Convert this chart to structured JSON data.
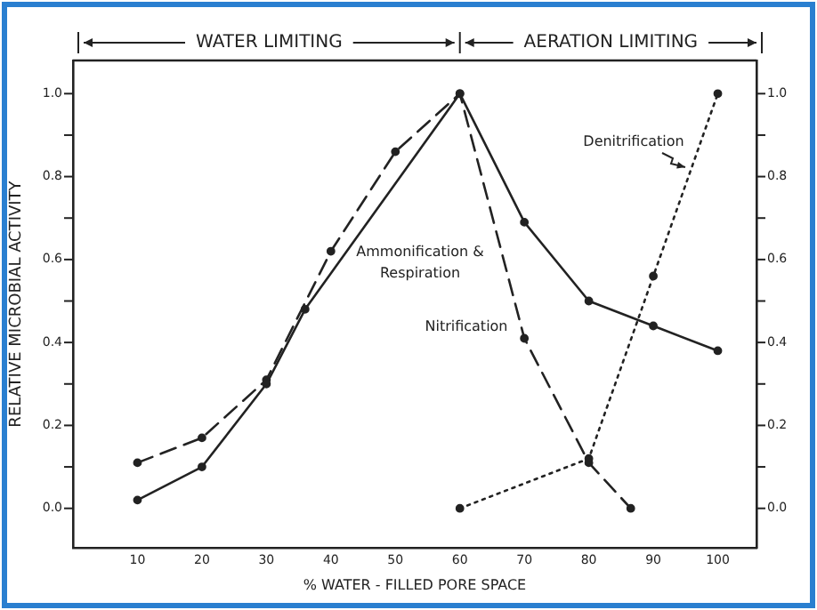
{
  "chart_data": {
    "type": "line",
    "xlabel": "% WATER - FILLED PORE SPACE",
    "ylabel": "RELATIVE MICROBIAL ACTIVITY",
    "annotations": [
      "WATER LIMITING",
      "AERATION LIMITING"
    ],
    "xlim": [
      0,
      106
    ],
    "xticks": [
      10,
      20,
      30,
      40,
      50,
      60,
      70,
      80,
      90,
      100
    ],
    "ylim": [
      -0.095,
      1.08
    ],
    "yticks": [
      {
        "value": 0,
        "label": "0.0"
      },
      {
        "value": 0.1,
        "label": null
      },
      {
        "value": 0.2,
        "label": "0.2"
      },
      {
        "value": 0.3,
        "label": null
      },
      {
        "value": 0.4,
        "label": "0.4"
      },
      {
        "value": 0.5,
        "label": null
      },
      {
        "value": 0.6,
        "label": "0.6"
      },
      {
        "value": 0.7,
        "label": null
      },
      {
        "value": 0.8,
        "label": "0.8"
      },
      {
        "value": 0.9,
        "label": null
      },
      {
        "value": 1.0,
        "label": "1.0"
      }
    ],
    "y2lim": [
      -0.095,
      1.08
    ],
    "y2ticks": [
      {
        "value": 0,
        "label": "0.0"
      },
      {
        "value": 0.1,
        "label": null
      },
      {
        "value": 0.2,
        "label": "0.2"
      },
      {
        "value": 0.3,
        "label": null
      },
      {
        "value": 0.4,
        "label": "0.4"
      },
      {
        "value": 0.5,
        "label": null
      },
      {
        "value": 0.6,
        "label": "0.6"
      },
      {
        "value": 0.7,
        "label": null
      },
      {
        "value": 0.8,
        "label": "0.8"
      },
      {
        "value": 0.9,
        "label": null
      },
      {
        "value": 1.0,
        "label": "1.0"
      }
    ],
    "grid": false,
    "legend": false,
    "marker": "circle",
    "series": [
      {
        "name": "Ammonification & Respiration",
        "color": "#222222",
        "line_style": "solid",
        "x": [
          10,
          20,
          30,
          36,
          60,
          70,
          80,
          90,
          100
        ],
        "values": [
          0.02,
          0.1,
          0.3,
          0.48,
          1.0,
          0.69,
          0.5,
          0.44,
          0.38
        ]
      },
      {
        "name": "Nitrification",
        "color": "#222222",
        "line_style": "dashed",
        "x": [
          10,
          20,
          30,
          40,
          50,
          60,
          70,
          80,
          86.5
        ],
        "values": [
          0.11,
          0.17,
          0.31,
          0.62,
          0.86,
          1.0,
          0.41,
          0.11,
          0.0
        ]
      },
      {
        "name": "Denitrification",
        "color": "#222222",
        "line_style": "dotted",
        "x": [
          60,
          80,
          90,
          100
        ],
        "values": [
          0.0,
          0.12,
          0.56,
          1.0
        ]
      }
    ]
  }
}
